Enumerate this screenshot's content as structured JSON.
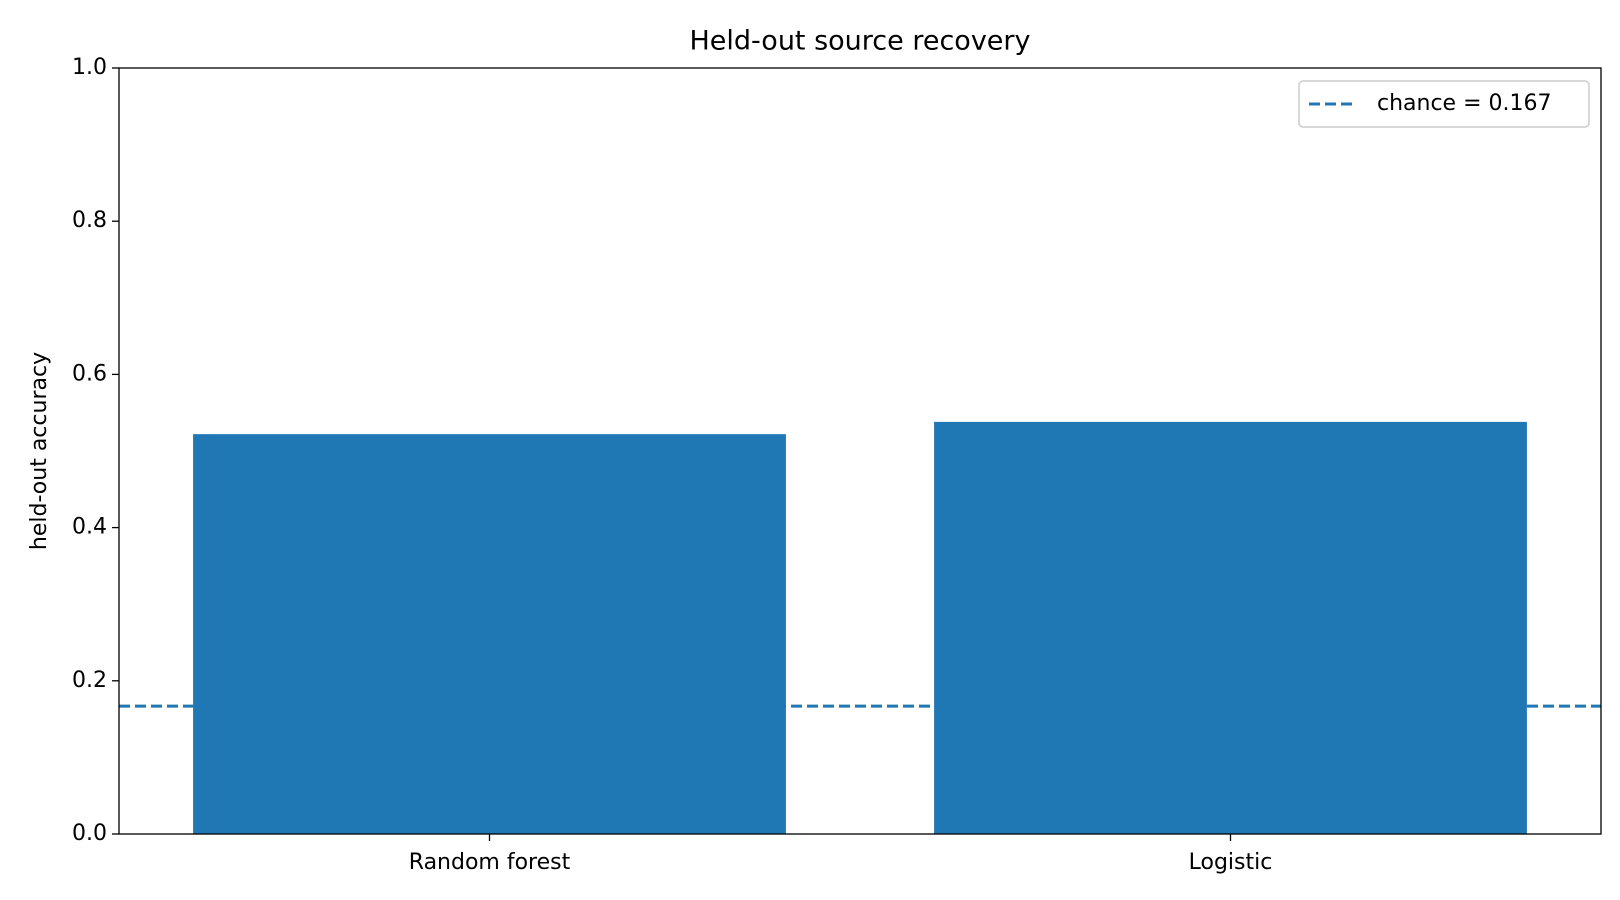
{
  "chart_data": {
    "type": "bar",
    "title": "Held-out source recovery",
    "ylabel": "held-out accuracy",
    "categories": [
      "Random forest",
      "Logistic"
    ],
    "values": [
      0.522,
      0.538
    ],
    "color": "#1f77b4",
    "ylim": [
      0,
      1
    ],
    "yticks": [
      {
        "value": 0,
        "label": "0.0"
      },
      0.2,
      0.4,
      0.6,
      0.8,
      {
        "value": 1,
        "label": "1.0"
      }
    ],
    "grid": false,
    "hlines": [
      {
        "value": 0.167,
        "label": "chance = 0.167",
        "color": "#1f77b4",
        "style": "dashed"
      }
    ],
    "legend": "upper right"
  }
}
